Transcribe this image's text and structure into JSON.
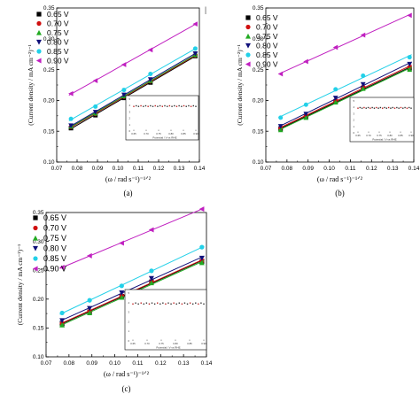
{
  "figure_marker": "|",
  "chart_data": [
    {
      "type": "scatter",
      "panel_label": "(a)",
      "xlabel": "(ω / rad s⁻¹)⁻¹ᐟ²",
      "ylabel": "(Current density / mA cm⁻²)⁻¹",
      "xlim": [
        0.07,
        0.14
      ],
      "ylim": [
        0.1,
        0.35
      ],
      "x_ticks": [
        "0.07",
        "0.08",
        "0.09",
        "0.10",
        "0.11",
        "0.12",
        "0.13",
        "0.14"
      ],
      "y_ticks": [
        "0.10",
        "0.15",
        "0.20",
        "0.25",
        "0.30",
        "0.35"
      ],
      "x": [
        0.077,
        0.089,
        0.103,
        0.116,
        0.138
      ],
      "series": [
        {
          "name": "0.65 V",
          "marker": "square",
          "color": "#000000",
          "values": [
            0.155,
            0.176,
            0.204,
            0.229,
            0.272
          ]
        },
        {
          "name": "0.70 V",
          "marker": "circle",
          "color": "#d01010",
          "values": [
            0.157,
            0.178,
            0.206,
            0.231,
            0.273
          ]
        },
        {
          "name": "0.75 V",
          "marker": "triangle-up",
          "color": "#22aa22",
          "values": [
            0.158,
            0.179,
            0.207,
            0.232,
            0.274
          ]
        },
        {
          "name": "0.80 V",
          "marker": "triangle-down",
          "color": "#10107a",
          "values": [
            0.159,
            0.181,
            0.209,
            0.234,
            0.276
          ]
        },
        {
          "name": "0.85 V",
          "marker": "circle",
          "color": "#22d0e8",
          "values": [
            0.17,
            0.19,
            0.217,
            0.243,
            0.284
          ]
        },
        {
          "name": "0.90 V",
          "marker": "triangle-left",
          "color": "#c020c0",
          "values": [
            0.211,
            0.232,
            0.258,
            0.282,
            0.324
          ]
        }
      ]
    },
    {
      "type": "scatter",
      "panel_label": "(b)",
      "xlabel": "(ω / rad s⁻¹)⁻¹ᐟ²",
      "ylabel": "(Current density / mA cm⁻²)⁻¹",
      "xlim": [
        0.07,
        0.14
      ],
      "ylim": [
        0.1,
        0.35
      ],
      "x_ticks": [
        "0.07",
        "0.08",
        "0.09",
        "0.10",
        "0.11",
        "0.12",
        "0.13",
        "0.14"
      ],
      "y_ticks": [
        "0.10",
        "0.15",
        "0.20",
        "0.25",
        "0.30",
        "0.35"
      ],
      "x": [
        0.077,
        0.089,
        0.103,
        0.116,
        0.138
      ],
      "series": [
        {
          "name": "0.65 V",
          "marker": "square",
          "color": "#000000",
          "values": [
            0.154,
            0.173,
            0.198,
            0.22,
            0.252
          ]
        },
        {
          "name": "0.70 V",
          "marker": "circle",
          "color": "#d01010",
          "values": [
            0.155,
            0.175,
            0.2,
            0.222,
            0.254
          ]
        },
        {
          "name": "0.75 V",
          "marker": "triangle-up",
          "color": "#22aa22",
          "values": [
            0.152,
            0.172,
            0.197,
            0.219,
            0.25
          ]
        },
        {
          "name": "0.80 V",
          "marker": "triangle-down",
          "color": "#10107a",
          "values": [
            0.158,
            0.178,
            0.204,
            0.226,
            0.259
          ]
        },
        {
          "name": "0.85 V",
          "marker": "circle",
          "color": "#22d0e8",
          "values": [
            0.172,
            0.193,
            0.218,
            0.24,
            0.27
          ]
        },
        {
          "name": "0.90 V",
          "marker": "triangle-left",
          "color": "#c020c0",
          "values": [
            0.243,
            0.263,
            0.286,
            0.306,
            0.338
          ]
        }
      ]
    },
    {
      "type": "scatter",
      "panel_label": "(c)",
      "xlabel": "(ω / rad s⁻¹)⁻¹ᐟ²",
      "ylabel": "(Current density / mA cm⁻²)⁻¹",
      "xlim": [
        0.07,
        0.14
      ],
      "ylim": [
        0.1,
        0.35
      ],
      "x_ticks": [
        "0.07",
        "0.08",
        "0.09",
        "0.10",
        "0.11",
        "0.12",
        "0.13",
        "0.14"
      ],
      "y_ticks": [
        "0.10",
        "0.15",
        "0.20",
        "0.25",
        "0.30",
        "0.35"
      ],
      "x": [
        0.077,
        0.089,
        0.103,
        0.116,
        0.138
      ],
      "series": [
        {
          "name": "0.65 V",
          "marker": "square",
          "color": "#000000",
          "values": [
            0.157,
            0.178,
            0.205,
            0.23,
            0.265
          ]
        },
        {
          "name": "0.70 V",
          "marker": "circle",
          "color": "#d01010",
          "values": [
            0.158,
            0.179,
            0.206,
            0.231,
            0.266
          ]
        },
        {
          "name": "0.75 V",
          "marker": "triangle-up",
          "color": "#22aa22",
          "values": [
            0.155,
            0.176,
            0.203,
            0.228,
            0.263
          ]
        },
        {
          "name": "0.80 V",
          "marker": "triangle-down",
          "color": "#10107a",
          "values": [
            0.163,
            0.184,
            0.211,
            0.236,
            0.271
          ]
        },
        {
          "name": "0.85 V",
          "marker": "circle",
          "color": "#22d0e8",
          "values": [
            0.176,
            0.198,
            0.223,
            0.249,
            0.29
          ]
        },
        {
          "name": "0.90 V",
          "marker": "triangle-left",
          "color": "#c020c0",
          "values": [
            0.255,
            0.275,
            0.297,
            0.32,
            0.356
          ]
        }
      ]
    }
  ],
  "inset": {
    "xlabel": "Potential / V vs RHE",
    "x_ticks": [
      "0.65",
      "0.70",
      "0.75",
      "0.80",
      "0.85",
      "0.90"
    ],
    "y_ticks": [
      "5",
      "4",
      "3",
      "2",
      "1",
      "0"
    ],
    "n_values": [
      3.9,
      3.9,
      3.9,
      3.9,
      3.9,
      3.9
    ]
  }
}
